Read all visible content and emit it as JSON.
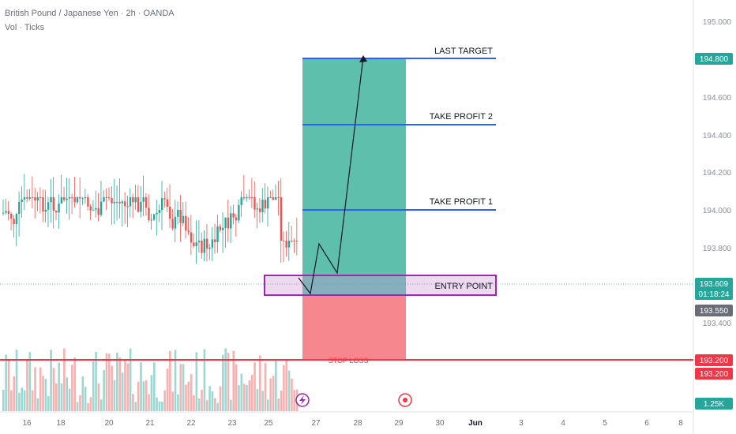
{
  "header": {
    "symbol": "British Pound / Japanese Yen · 2h · OANDA",
    "indicator": "Vol · Ticks"
  },
  "chart_data": {
    "type": "candlestick",
    "y_ticks": [
      "195.000",
      "194.800",
      "194.600",
      "194.400",
      "194.200",
      "194.000",
      "193.800",
      "193.609",
      "193.550",
      "193.400",
      "193.200"
    ],
    "ylim": [
      193.0,
      195.1
    ],
    "x_ticks": [
      "16",
      "18",
      "20",
      "21",
      "22",
      "23",
      "25",
      "27",
      "28",
      "29",
      "30",
      "Jun",
      "3",
      "4",
      "5",
      "6",
      "8"
    ],
    "levels": [
      {
        "name": "LAST TARGET",
        "price": 194.8
      },
      {
        "name": "TAKE PROFIT 2",
        "price": 194.45
      },
      {
        "name": "TAKE PROFIT 1",
        "price": 194.0
      },
      {
        "name": "ENTRY POINT",
        "price": 193.6
      },
      {
        "name": "STOP LOSS",
        "price": 193.2
      }
    ],
    "price_tags": {
      "last_target": "194.800",
      "current": "193.609",
      "countdown": "01:18:24",
      "low": "193.550",
      "stop_1": "193.200",
      "stop_2": "193.200",
      "volume": "1.25K"
    },
    "projection_path": [
      [
        193.55,
        0
      ],
      [
        193.83,
        1
      ],
      [
        193.68,
        2
      ],
      [
        194.82,
        3
      ]
    ],
    "colors": {
      "up": "#26a69a",
      "down": "#ef5350",
      "target_zone": "#5fbfad",
      "stop_zone": "#f7878e",
      "level_line": "#2962ff",
      "stop_line": "#f23645",
      "entry_box": "#9c27b0",
      "tag_blue": "#26a69a",
      "tag_red": "#f23645"
    }
  }
}
